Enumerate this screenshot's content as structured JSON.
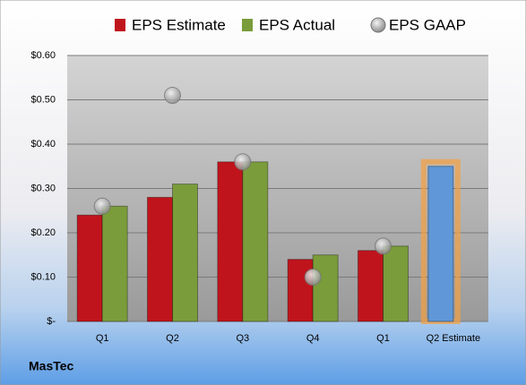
{
  "chart_data": {
    "type": "bar",
    "title": "MasTec",
    "categories": [
      "Q1",
      "Q2",
      "Q3",
      "Q4",
      "Q1",
      "Q2 Estimate"
    ],
    "series": [
      {
        "name": "EPS Estimate",
        "color": "#c0141c",
        "kind": "bar",
        "values": [
          0.24,
          0.28,
          0.36,
          0.14,
          0.16,
          0.35
        ],
        "colors": [
          "#c0141c",
          "#c0141c",
          "#c0141c",
          "#c0141c",
          "#c0141c",
          "#5f97d8"
        ]
      },
      {
        "name": "EPS Actual",
        "color": "#7a9c3a",
        "kind": "bar",
        "values": [
          0.26,
          0.31,
          0.36,
          0.15,
          0.17,
          null
        ]
      },
      {
        "name": "EPS GAAP",
        "color": "#a8a8a8",
        "kind": "scatter",
        "values": [
          0.26,
          0.51,
          0.36,
          0.1,
          0.17,
          null
        ]
      }
    ],
    "ylim": [
      0,
      0.6
    ],
    "yticks": [
      {
        "value": 0,
        "label": "$-"
      },
      {
        "value": 0.1,
        "label": "$0.10"
      },
      {
        "value": 0.2,
        "label": "$0.20"
      },
      {
        "value": 0.3,
        "label": "$0.30"
      },
      {
        "value": 0.4,
        "label": "$0.40"
      },
      {
        "value": 0.5,
        "label": "$0.50"
      },
      {
        "value": 0.6,
        "label": "$0.60"
      }
    ],
    "grid": true,
    "legend": "top"
  }
}
